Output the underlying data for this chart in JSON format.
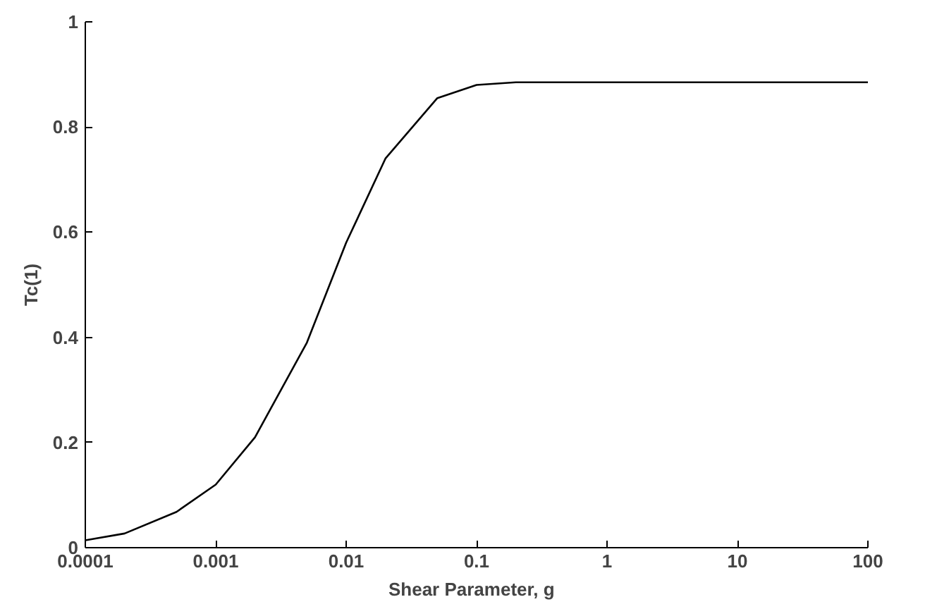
{
  "chart_data": {
    "type": "line",
    "xlabel": "Shear Parameter,   g",
    "ylabel": "Tc(1)",
    "log": "x",
    "x": [
      0.0001,
      0.0002,
      0.0005,
      0.001,
      0.002,
      0.005,
      0.01,
      0.02,
      0.05,
      0.1,
      0.2,
      0.5,
      1,
      2,
      5,
      10,
      20,
      50,
      100
    ],
    "series": [
      {
        "color": "#000000",
        "values": [
          0.014,
          0.027,
          0.068,
          0.12,
          0.21,
          0.39,
          0.58,
          0.74,
          0.855,
          0.88,
          0.885,
          0.885,
          0.885,
          0.885,
          0.885,
          0.885,
          0.885,
          0.885,
          0.885
        ]
      }
    ],
    "xlim": [
      0.0001,
      100
    ],
    "ylim": [
      0,
      1
    ],
    "xticks": [
      0.0001,
      0.001,
      0.01,
      0.1,
      1,
      10,
      100
    ],
    "yticks": [
      0,
      0.2,
      0.4,
      0.6,
      0.8,
      1
    ],
    "grid": false,
    "marker": "none",
    "line_style": "solid"
  }
}
